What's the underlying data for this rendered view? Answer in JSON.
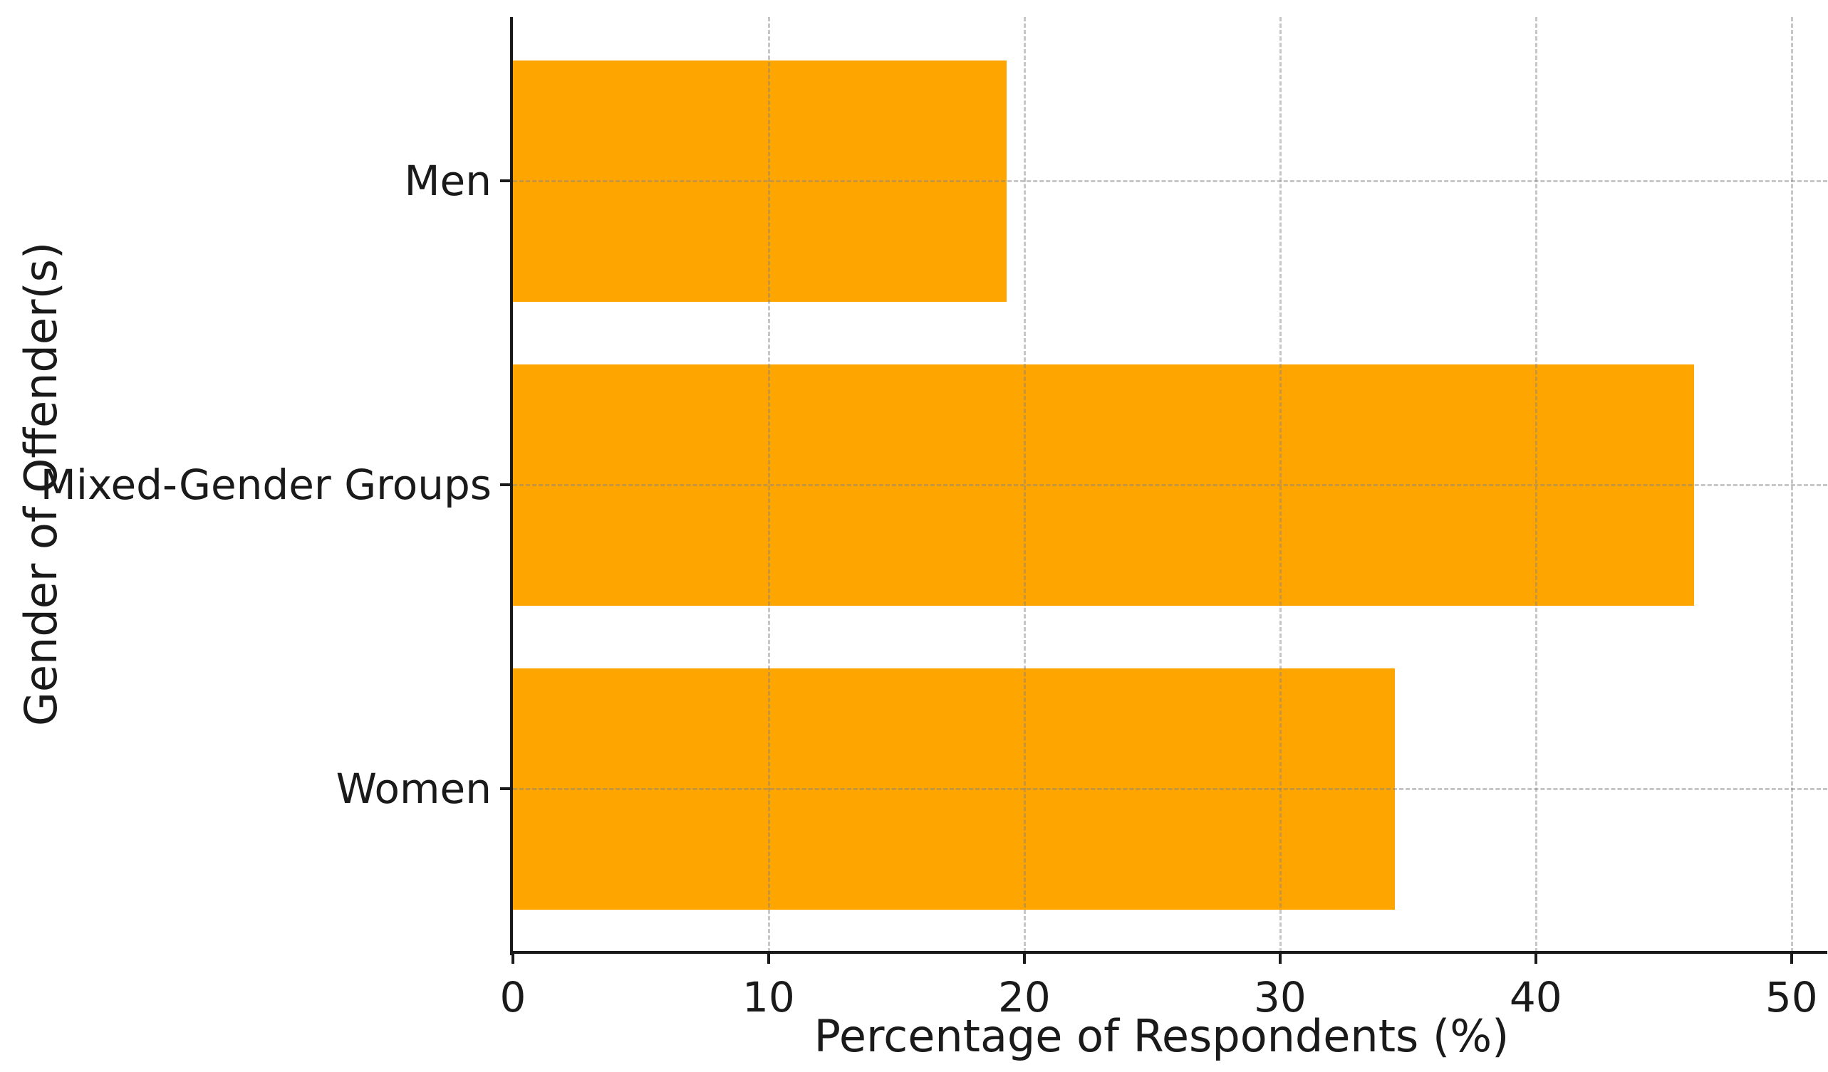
{
  "chart_data": {
    "type": "bar",
    "orientation": "horizontal",
    "title": "",
    "categories": [
      "Men",
      "Mixed-Gender Groups",
      "Women"
    ],
    "values": [
      19.3,
      46.2,
      34.5
    ],
    "xlabel": "Percentage of Respondents (%)",
    "ylabel": "Gender of Offender(s)",
    "x_ticks": [
      "0",
      "10",
      "20",
      "30",
      "40",
      "50"
    ],
    "x_tick_values": [
      0,
      10,
      20,
      30,
      40,
      50
    ],
    "xlim": [
      0,
      51.4
    ],
    "bar_color": "#FFA500",
    "grid": "dashed",
    "grid_color": "#c8c8c8",
    "legend": "none",
    "background": "#ffffff"
  }
}
